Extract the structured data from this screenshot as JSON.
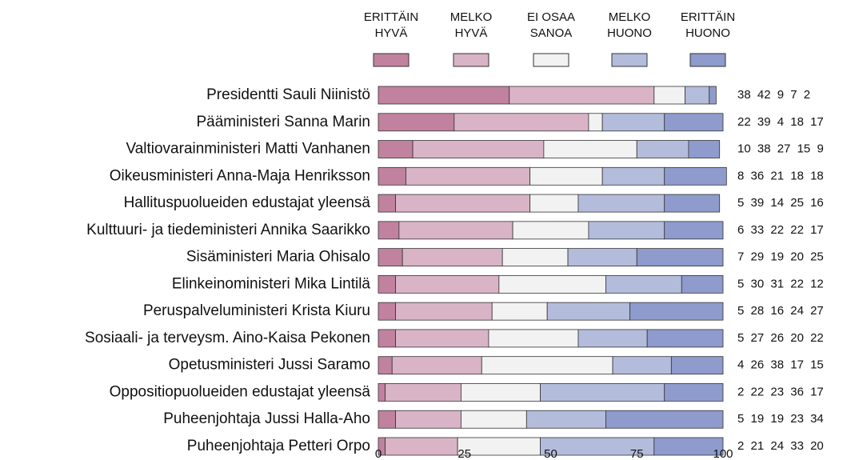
{
  "chart_data": {
    "type": "stacked_barh",
    "categories": [
      "Presidentti Sauli Niinistö",
      "Pääministeri Sanna Marin",
      "Valtiovarainministeri Matti Vanhanen",
      "Oikeusministeri Anna-Maja Henriksson",
      "Hallituspuolueiden edustajat yleensä",
      "Kulttuuri- ja tiedeministeri Annika Saarikko",
      "Sisäministeri Maria Ohisalo",
      "Elinkeinoministeri Mika Lintilä",
      "Peruspalveluministeri Krista Kiuru",
      "Sosiaali- ja terveysm. Aino-Kaisa Pekonen",
      "Opetusministeri Jussi Saramo",
      "Oppositiopuolueiden edustajat yleensä",
      "Puheenjohtaja Jussi Halla-Aho",
      "Puheenjohtaja Petteri Orpo"
    ],
    "series": [
      {
        "name": "ERITTÄIN\nHYVÄ",
        "color": "#c0829f",
        "values": [
          38,
          22,
          10,
          8,
          5,
          6,
          7,
          5,
          5,
          5,
          4,
          2,
          5,
          2
        ]
      },
      {
        "name": "MELKO\nHYVÄ",
        "color": "#d9b3c6",
        "values": [
          42,
          39,
          38,
          36,
          39,
          33,
          29,
          30,
          28,
          27,
          26,
          22,
          19,
          21
        ]
      },
      {
        "name": "EI OSAA\nSANOA",
        "color": "#f2f2f2",
        "values": [
          9,
          4,
          27,
          21,
          14,
          22,
          19,
          31,
          16,
          26,
          38,
          23,
          19,
          24
        ]
      },
      {
        "name": "MELKO\nHUONO",
        "color": "#b4bcdc",
        "values": [
          7,
          18,
          15,
          18,
          25,
          22,
          20,
          22,
          24,
          20,
          17,
          36,
          23,
          33
        ]
      },
      {
        "name": "ERITTÄIN\nHUONO",
        "color": "#8e9bcc",
        "values": [
          2,
          17,
          9,
          18,
          16,
          17,
          25,
          12,
          27,
          22,
          15,
          17,
          34,
          20
        ]
      }
    ],
    "xlim": [
      0,
      100
    ],
    "xticks": [
      0,
      25,
      50,
      75,
      100
    ]
  }
}
